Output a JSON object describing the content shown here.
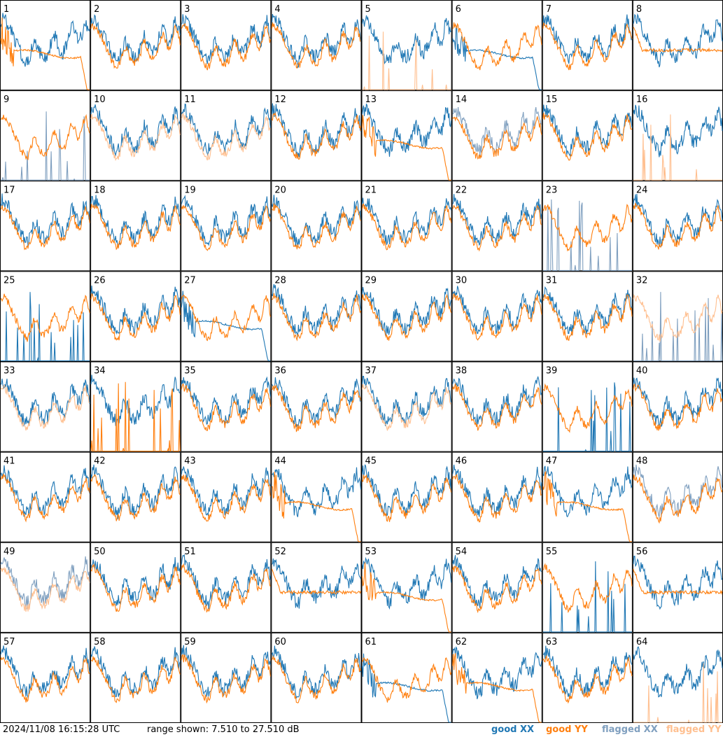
{
  "chart_data": {
    "type": "line",
    "layout": "small-multiples 8x8",
    "panel_count": 64,
    "panel_labels": [
      "1",
      "2",
      "3",
      "4",
      "5",
      "6",
      "7",
      "8",
      "9",
      "10",
      "11",
      "12",
      "13",
      "14",
      "15",
      "16",
      "17",
      "18",
      "19",
      "20",
      "21",
      "22",
      "23",
      "24",
      "25",
      "26",
      "27",
      "28",
      "29",
      "30",
      "31",
      "32",
      "33",
      "34",
      "35",
      "36",
      "37",
      "38",
      "39",
      "40",
      "41",
      "42",
      "43",
      "44",
      "45",
      "46",
      "47",
      "48",
      "49",
      "50",
      "51",
      "52",
      "53",
      "54",
      "55",
      "56",
      "57",
      "58",
      "59",
      "60",
      "61",
      "62",
      "63",
      "64"
    ],
    "ylim_db": [
      7.51,
      27.51
    ],
    "series_legend": [
      "good XX",
      "good YY",
      "flagged XX",
      "flagged YY"
    ],
    "colors": {
      "good_xx": "#1f77b4",
      "good_yy": "#ff7f0e",
      "flagged_xx": "#7f9fbf",
      "flagged_yy": "#ffbf8f"
    },
    "panels": {
      "1": {
        "xx": "good",
        "yy": "good",
        "yy_shape": "drop"
      },
      "5": {
        "xx": "good",
        "yy": "flagged",
        "yy_shape": "spikes"
      },
      "6": {
        "xx": "good",
        "yy": "good",
        "xx_shape": "drop"
      },
      "8": {
        "xx": "good",
        "yy": "good",
        "yy_shape": "flat"
      },
      "9": {
        "xx": "flagged",
        "yy": "good",
        "xx_shape": "spikes"
      },
      "10": {
        "xx": "good",
        "yy": "flagged"
      },
      "11": {
        "xx": "good",
        "yy": "flagged"
      },
      "13": {
        "xx": "good",
        "yy": "good",
        "yy_shape": "drop"
      },
      "14": {
        "xx": "flagged",
        "yy": "good"
      },
      "16": {
        "xx": "good",
        "yy": "flagged",
        "yy_shape": "spikes"
      },
      "23": {
        "xx": "flagged",
        "yy": "good",
        "xx_shape": "spikes"
      },
      "25": {
        "xx": "good",
        "yy": "good",
        "xx_shape": "spikes"
      },
      "27": {
        "xx": "good",
        "yy": "good",
        "xx_shape": "drop"
      },
      "32": {
        "xx": "flagged",
        "yy": "flagged",
        "xx_shape": "spikes"
      },
      "33": {
        "xx": "good",
        "yy": "flagged"
      },
      "34": {
        "xx": "good",
        "yy": "good",
        "yy_shape": "spikes"
      },
      "37": {
        "xx": "good",
        "yy": "flagged"
      },
      "39": {
        "xx": "good",
        "yy": "good",
        "xx_shape": "spikes"
      },
      "44": {
        "xx": "good",
        "yy": "good",
        "yy_shape": "drop"
      },
      "47": {
        "xx": "good",
        "yy": "good",
        "yy_shape": "drop"
      },
      "48": {
        "xx": "flagged",
        "yy": "good"
      },
      "49": {
        "xx": "flagged",
        "yy": "flagged"
      },
      "52": {
        "xx": "good",
        "yy": "good",
        "yy_shape": "flat"
      },
      "53": {
        "xx": "good",
        "yy": "good",
        "yy_shape": "drop"
      },
      "55": {
        "xx": "good",
        "yy": "good",
        "xx_shape": "spikes"
      },
      "56": {
        "xx": "good",
        "yy": "good",
        "yy_shape": "flat"
      },
      "61": {
        "xx": "good",
        "yy": "good",
        "xx_shape": "drop"
      },
      "62": {
        "xx": "good",
        "yy": "good",
        "yy_shape": "drop"
      },
      "64": {
        "xx": "good",
        "yy": "flagged",
        "yy_shape": "spikes"
      }
    }
  },
  "footer": {
    "timestamp": "2024/11/08 16:15:28 UTC",
    "range_text": "range shown: 7.510 to 27.510 dB",
    "legend": {
      "good_xx": "good XX",
      "good_yy": "good YY",
      "flagged_xx": "flagged XX",
      "flagged_yy": "flagged YY"
    }
  }
}
